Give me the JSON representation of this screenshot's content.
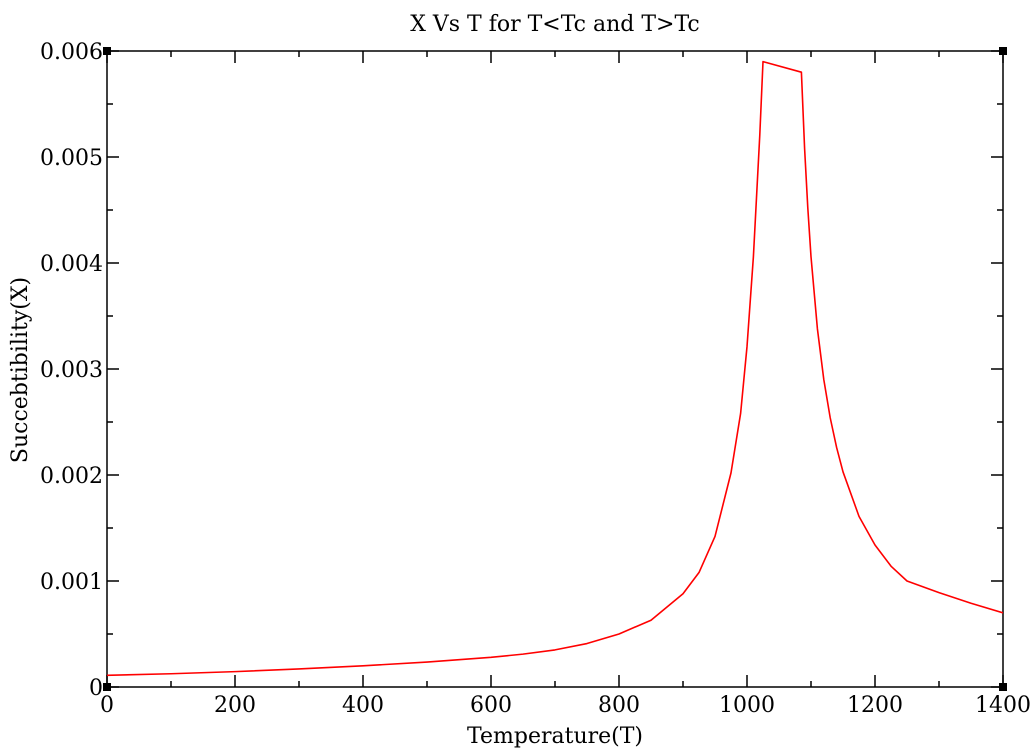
{
  "chart_data": {
    "type": "line",
    "title": "X Vs T for T<Tc and T>Tc",
    "xlabel": "Temperature(T)",
    "ylabel": "Succebtibility(X)",
    "xlim": [
      0,
      1400
    ],
    "ylim": [
      0,
      0.006
    ],
    "x_ticks": [
      0,
      200,
      400,
      600,
      800,
      1000,
      1200,
      1400
    ],
    "x_tick_labels": [
      "0",
      "200",
      "400",
      "600",
      "800",
      "1000",
      "1200",
      "1400"
    ],
    "y_ticks": [
      0,
      0.001,
      0.002,
      0.003,
      0.004,
      0.005,
      0.006
    ],
    "y_tick_labels": [
      "0",
      "0.001",
      "0.002",
      "0.003",
      "0.004",
      "0.005",
      "0.006"
    ],
    "grid": false,
    "legend": "none",
    "series": [
      {
        "color": "#ff0000",
        "x": [
          0,
          100,
          200,
          300,
          400,
          500,
          600,
          650,
          700,
          750,
          800,
          850,
          900,
          925,
          950,
          975,
          990,
          1000,
          1010,
          1020,
          1025,
          1085,
          1090,
          1095,
          1100,
          1110,
          1120,
          1130,
          1140,
          1150,
          1175,
          1200,
          1225,
          1250,
          1300,
          1350,
          1400
        ],
        "y": [
          0.00011,
          0.000125,
          0.000145,
          0.00017,
          0.0002,
          0.000235,
          0.00028,
          0.00031,
          0.00035,
          0.00041,
          0.0005,
          0.00063,
          0.00088,
          0.00108,
          0.00142,
          0.00202,
          0.00258,
          0.00321,
          0.00406,
          0.00521,
          0.0059,
          0.0058,
          0.00508,
          0.00452,
          0.00406,
          0.00338,
          0.0029,
          0.00254,
          0.00226,
          0.00203,
          0.00161,
          0.00134,
          0.00114,
          0.001,
          0.00089,
          0.00079,
          0.0007
        ]
      }
    ]
  }
}
